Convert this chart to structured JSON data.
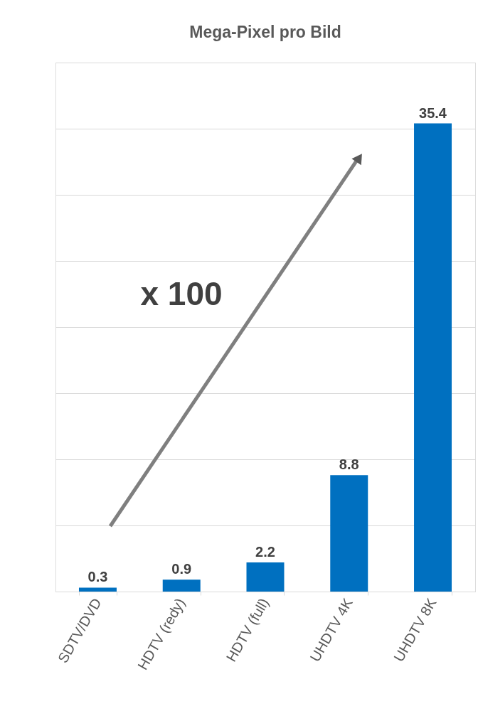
{
  "chart_data": {
    "type": "bar",
    "title": "Mega-Pixel pro Bild",
    "categories": [
      "SDTV/DVD",
      "HDTV (redy)",
      "HDTV (full)",
      "UHDTV 4K",
      "UHDTV 8K"
    ],
    "values": [
      0.3,
      0.9,
      2.2,
      8.8,
      35.4
    ],
    "color": "#0070c0",
    "ylim": [
      0,
      40
    ],
    "yticks": [
      {
        "value": 0,
        "label": null
      },
      {
        "value": 5,
        "label": null
      },
      {
        "value": 10,
        "label": null
      },
      {
        "value": 15,
        "label": null
      },
      {
        "value": 20,
        "label": null
      },
      {
        "value": 25,
        "label": null
      },
      {
        "value": 30,
        "label": null
      },
      {
        "value": 35,
        "label": null
      },
      {
        "value": 40,
        "label": null
      }
    ],
    "grid": "y",
    "tick_labels": "x",
    "data_labels": true,
    "annotations": [
      "x 100"
    ]
  }
}
